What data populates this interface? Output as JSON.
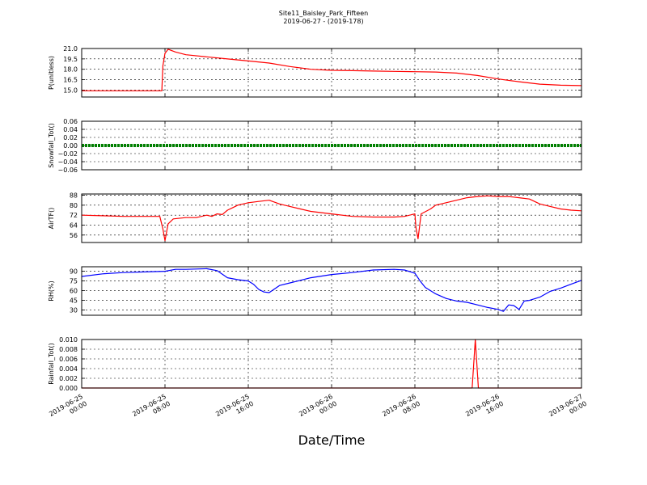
{
  "title": "Site11_Baisley_Park_Fifteen",
  "subtitle": "2019-06-27 - (2019-178)",
  "chart_data": {
    "type": "line",
    "title": "Site11_Baisley_Park_Fifteen",
    "subtitle": "2019-06-27 - (2019-178)",
    "xlabel": "Date/Time",
    "x_range": [
      "2019-06-25 00:00",
      "2019-06-27 00:00"
    ],
    "x_tick_labels": [
      [
        "2019-06-25",
        "00:00"
      ],
      [
        "2019-06-25",
        "08:00"
      ],
      [
        "2019-06-25",
        "16:00"
      ],
      [
        "2019-06-26",
        "00:00"
      ],
      [
        "2019-06-26",
        "08:00"
      ],
      [
        "2019-06-26",
        "16:00"
      ],
      [
        "2019-06-27",
        "00:00"
      ]
    ],
    "x_unit_note": "x values are hours after 2019-06-25 00:00",
    "grid": true,
    "panels": [
      {
        "ylabel": "P(unitless)",
        "ylim": [
          14.0,
          21.0
        ],
        "yticks": [
          15.0,
          16.5,
          18.0,
          19.5,
          21.0
        ],
        "ytick_labels": [
          "15.0",
          "16.5",
          "18.0",
          "19.5",
          "21.0"
        ],
        "color": "#ff0000",
        "series": [
          {
            "x": [
              0,
              7.7,
              7.8,
              8.0,
              8.3,
              9,
              10,
              12,
              14,
              16,
              18,
              20,
              22,
              24,
              26,
              28,
              30,
              32,
              34,
              36,
              38,
              40,
              42,
              44,
              46,
              48
            ],
            "y": [
              14.9,
              14.9,
              18.5,
              20.3,
              20.9,
              20.5,
              20.1,
              19.8,
              19.5,
              19.2,
              18.9,
              18.4,
              18.0,
              17.85,
              17.8,
              17.75,
              17.7,
              17.65,
              17.6,
              17.45,
              17.1,
              16.6,
              16.2,
              15.85,
              15.7,
              15.65
            ]
          }
        ]
      },
      {
        "ylabel": "Snowfall_Tot()",
        "ylim": [
          -0.06,
          0.06
        ],
        "yticks": [
          -0.06,
          -0.04,
          -0.02,
          0.0,
          0.02,
          0.04,
          0.06
        ],
        "ytick_labels": [
          "−0.06",
          "−0.04",
          "−0.02",
          "0.00",
          "0.02",
          "0.04",
          "0.06"
        ],
        "color": "#008000",
        "series": [
          {
            "x": [
              0,
              48
            ],
            "y": [
              0,
              0
            ]
          }
        ]
      },
      {
        "ylabel": "AirTF()",
        "ylim": [
          50,
          89
        ],
        "yticks": [
          56,
          64,
          72,
          80,
          88
        ],
        "ytick_labels": [
          "56",
          "64",
          "72",
          "80",
          "88"
        ],
        "color": "#ff0000",
        "series": [
          {
            "x": [
              0,
              2,
              4,
              6,
              7.5,
              7.8,
              8.0,
              8.3,
              8.8,
              10,
              11,
              12,
              12.5,
              13,
              13.5,
              14,
              14.5,
              15,
              16,
              17,
              18,
              19,
              20,
              21,
              22,
              24,
              26,
              28,
              30,
              31,
              32,
              32.1,
              32.3,
              32.6,
              33.5,
              34,
              35,
              36,
              37,
              38,
              39,
              40,
              41,
              42,
              43,
              44,
              45,
              46,
              47,
              48
            ],
            "y": [
              72,
              71.5,
              71,
              71,
              71,
              61,
              51.5,
              65,
              69,
              70,
              70,
              72,
              71,
              73,
              72.5,
              76,
              78,
              80,
              82,
              83,
              84,
              81,
              79,
              77,
              75,
              73,
              71,
              70.5,
              70.5,
              71,
              73,
              62,
              53,
              73,
              77,
              80,
              82,
              84,
              86,
              87,
              87.5,
              87,
              87,
              86,
              85,
              81,
              79,
              77,
              76,
              75.5
            ]
          }
        ]
      },
      {
        "ylabel": "RH(%)",
        "ylim": [
          22,
          97
        ],
        "yticks": [
          30,
          45,
          60,
          75,
          90
        ],
        "ytick_labels": [
          "30",
          "45",
          "60",
          "75",
          "90"
        ],
        "color": "#0000ff",
        "series": [
          {
            "x": [
              0,
              2,
              4,
              6,
              8,
              9,
              10,
              11,
              12,
              13,
              14,
              15,
              16,
              16.5,
              17,
              17.5,
              18,
              19,
              20,
              21,
              22,
              24,
              26,
              28,
              30,
              31,
              32,
              32.5,
              33,
              34,
              35,
              36,
              37,
              38,
              39,
              40,
              40.5,
              41,
              41.5,
              42,
              42.5,
              43,
              44,
              45,
              46,
              47,
              48
            ],
            "y": [
              82,
              86,
              88,
              89,
              90,
              93,
              93,
              93.5,
              94,
              91,
              80,
              77,
              75,
              70,
              62,
              58,
              57,
              68,
              72,
              76,
              80,
              85,
              88,
              92,
              93,
              92,
              87,
              75,
              65,
              55,
              48,
              44,
              42,
              38,
              34,
              31,
              28,
              38,
              37,
              31,
              44,
              45,
              50,
              59,
              64,
              70,
              76
            ]
          }
        ]
      },
      {
        "ylabel": "Rainfall_Tot()",
        "ylim": [
          0,
          0.01
        ],
        "yticks": [
          0.0,
          0.002,
          0.004,
          0.006,
          0.008,
          0.01
        ],
        "ytick_labels": [
          "0.000",
          "0.002",
          "0.004",
          "0.006",
          "0.008",
          "0.010"
        ],
        "color": "#ff0000",
        "series": [
          {
            "x": [
              0,
              37.5,
              37.8,
              38.1,
              48
            ],
            "y": [
              0,
              0,
              0.01,
              0,
              0
            ]
          }
        ]
      }
    ]
  }
}
